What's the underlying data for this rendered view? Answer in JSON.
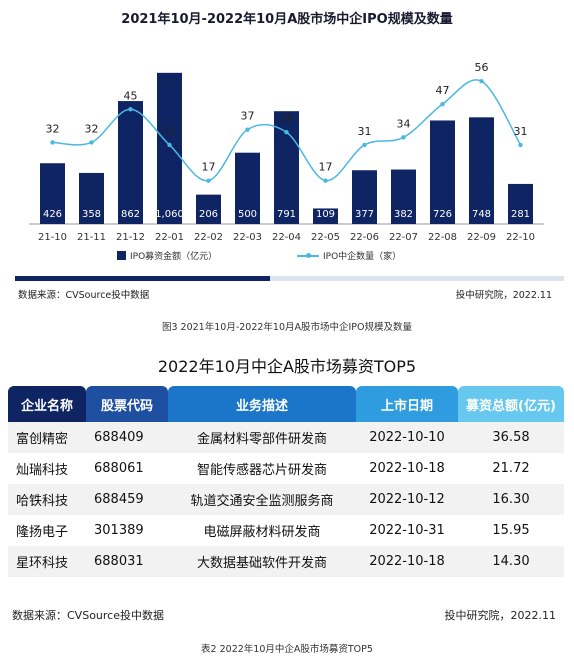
{
  "chart_data": {
    "type": "bar",
    "title": "2021年10月-2022年10月A股市场中企IPO规模及数量",
    "categories": [
      "21-10",
      "21-11",
      "21-12",
      "22-01",
      "22-02",
      "22-03",
      "22-04",
      "22-05",
      "22-06",
      "22-07",
      "22-08",
      "22-09",
      "22-10"
    ],
    "series": [
      {
        "name": "IPO募资金额（亿元）",
        "type": "bar",
        "color": "#0e2463",
        "values": [
          426,
          358,
          862,
          1060,
          206,
          500,
          791,
          109,
          377,
          382,
          726,
          748,
          281
        ],
        "labels": [
          "426",
          "358",
          "862",
          "1,060",
          "206",
          "500",
          "791",
          "109",
          "377",
          "382",
          "726",
          "748",
          "281"
        ]
      },
      {
        "name": "IPO中企数量（家）",
        "type": "line",
        "color": "#4bb8e0",
        "values": [
          32,
          32,
          45,
          31,
          17,
          37,
          36,
          17,
          31,
          34,
          47,
          56,
          31
        ]
      }
    ],
    "xlabel": "",
    "ylabel": "",
    "ylim_bar": [
      0,
      1150
    ],
    "ylim_line": [
      0,
      80
    ],
    "grid": false,
    "legend_position": "bottom"
  },
  "chart_footer": {
    "source": "数据来源：CVSource投中数据",
    "credit": "投中研究院，2022.11"
  },
  "caption": "图3  2021年10月-2022年10月A股市场中企IPO规模及数量",
  "table": {
    "title": "2022年10月中企A股市场募资TOP5",
    "headers": [
      "企业名称",
      "股票代码",
      "业务描述",
      "上市日期",
      "募资总额(亿元)"
    ],
    "rows": [
      [
        "富创精密",
        "688409",
        "金属材料零部件研发商",
        "2022-10-10",
        "36.58"
      ],
      [
        "灿瑞科技",
        "688061",
        "智能传感器芯片研发商",
        "2022-10-18",
        "21.72"
      ],
      [
        "哈铁科技",
        "688459",
        "轨道交通安全监测服务商",
        "2022-10-12",
        "16.30"
      ],
      [
        "隆扬电子",
        "301389",
        "电磁屏蔽材料研发商",
        "2022-10-31",
        "15.95"
      ],
      [
        "星环科技",
        "688031",
        "大数据基础软件开发商",
        "2022-10-18",
        "14.30"
      ]
    ],
    "source": "数据来源：CVSource投中数据",
    "credit": "投中研究院，2022.11"
  },
  "caption2": "表2  2022年10月中企A股市场募资TOP5"
}
